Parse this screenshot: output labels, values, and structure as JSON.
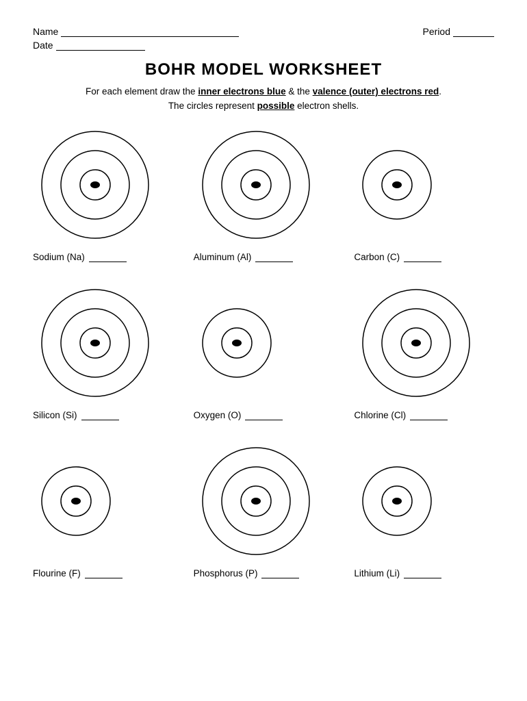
{
  "header": {
    "name_label": "Name",
    "period_label": "Period",
    "date_label": "Date",
    "name_line_width": 260,
    "period_line_width": 60,
    "date_line_width": 130
  },
  "title": "BOHR MODEL WORKSHEET",
  "instructions": {
    "prefix": "For each element draw the ",
    "part1": "inner electrons blue",
    "mid": " & the ",
    "part2": "valence (outer) electrons red",
    "suffix": "."
  },
  "instructions2": {
    "prefix": "The circles represent ",
    "bold": "possible",
    "suffix": " electron shells."
  },
  "diagram_style": {
    "stroke": "#000000",
    "stroke_width": 1.5,
    "nucleus_rx": 7,
    "nucleus_ry": 5,
    "shell_base_radius": 22,
    "shell_step": 28
  },
  "elements": [
    {
      "label": "Sodium (Na)",
      "shells": 3
    },
    {
      "label": "Aluminum (Al)",
      "shells": 3
    },
    {
      "label": "Carbon (C)",
      "shells": 2
    },
    {
      "label": "Silicon (Si)",
      "shells": 3
    },
    {
      "label": "Oxygen (O)",
      "shells": 2
    },
    {
      "label": "Chlorine (Cl)",
      "shells": 3
    },
    {
      "label": "Flourine (F)",
      "shells": 2
    },
    {
      "label": "Phosphorus (P)",
      "shells": 3
    },
    {
      "label": "Lithium (Li)",
      "shells": 2
    }
  ]
}
